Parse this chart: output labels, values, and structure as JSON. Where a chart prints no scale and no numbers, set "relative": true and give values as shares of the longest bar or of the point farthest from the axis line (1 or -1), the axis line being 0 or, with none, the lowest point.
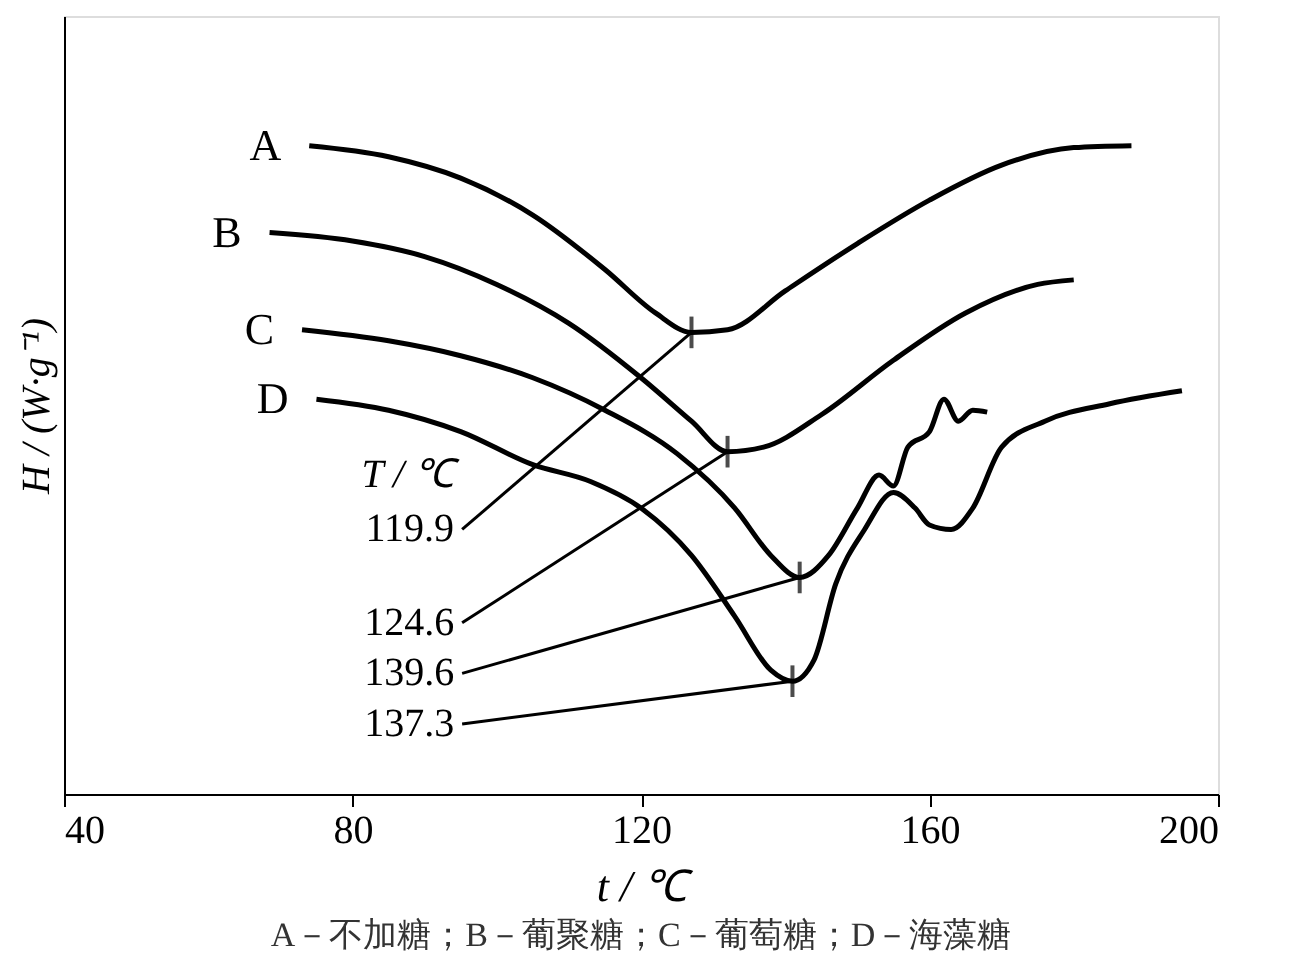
{
  "chart_data": {
    "type": "line",
    "relative": true,
    "xlabel": "t / ℃",
    "ylabel": "H / (W·g⁻¹)",
    "xlim": [
      40,
      200
    ],
    "xticks": [
      40,
      80,
      120,
      160,
      200
    ],
    "grid": false,
    "line_style": "solid",
    "series": [
      {
        "name": "A",
        "color": "#000000",
        "x": [
          74,
          85,
          95,
          105,
          115,
          122,
          127,
          132,
          140,
          150,
          160,
          170,
          180,
          188
        ],
        "values": [
          1.0,
          0.983,
          0.95,
          0.893,
          0.809,
          0.742,
          0.712,
          0.716,
          0.776,
          0.849,
          0.916,
          0.97,
          0.997,
          1.0
        ]
      },
      {
        "name": "B",
        "color": "#000000",
        "x": [
          68.5,
          80,
          90,
          100,
          110,
          120,
          127,
          132,
          137,
          145,
          155,
          165,
          175,
          180
        ],
        "values": [
          0.866,
          0.853,
          0.829,
          0.786,
          0.726,
          0.642,
          0.575,
          0.528,
          0.535,
          0.585,
          0.669,
          0.742,
          0.786,
          0.793
        ]
      },
      {
        "name": "C",
        "color": "#000000",
        "x": [
          73,
          85,
          95,
          105,
          115,
          125,
          133,
          138,
          142,
          146,
          150,
          153,
          155,
          157,
          160,
          162,
          164,
          166,
          168
        ],
        "values": [
          0.716,
          0.699,
          0.676,
          0.642,
          0.592,
          0.525,
          0.441,
          0.368,
          0.334,
          0.368,
          0.441,
          0.492,
          0.475,
          0.535,
          0.559,
          0.609,
          0.575,
          0.592,
          0.589
        ]
      },
      {
        "name": "D",
        "color": "#000000",
        "x": [
          75,
          85,
          95,
          105,
          113,
          120,
          127,
          133,
          138,
          141,
          144,
          147,
          151,
          155,
          158,
          160,
          163,
          166,
          170,
          176,
          185,
          195
        ],
        "values": [
          0.609,
          0.592,
          0.559,
          0.508,
          0.482,
          0.441,
          0.368,
          0.274,
          0.191,
          0.174,
          0.207,
          0.324,
          0.408,
          0.465,
          0.441,
          0.415,
          0.408,
          0.441,
          0.535,
          0.575,
          0.602,
          0.622
        ]
      }
    ],
    "annotations": [
      "T / ℃",
      {
        "text": "119.9",
        "x": 127,
        "y": 0.712
      },
      {
        "text": "124.6",
        "x": 132,
        "y": 0.528
      },
      {
        "text": "139.6",
        "x": 142,
        "y": 0.334
      },
      {
        "text": "137.3",
        "x": 141,
        "y": 0.174
      },
      "A－不加糖；B－葡聚糖；C－葡萄糖；D－海藻糖"
    ]
  }
}
